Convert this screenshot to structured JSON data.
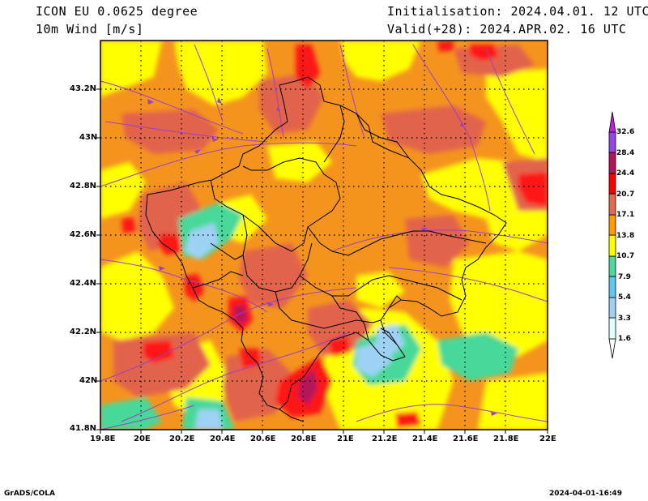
{
  "header": {
    "model": "ICON EU 0.0625 degree",
    "variable": "10m Wind [m/s]",
    "init": "Initialisation: 2024.04.01. 12 UTC",
    "valid": "Valid(+28): 2024.APR.02. 16 UTC"
  },
  "axes": {
    "x_ticks": [
      "19.8E",
      "20E",
      "20.2E",
      "20.4E",
      "20.6E",
      "20.8E",
      "21E",
      "21.2E",
      "21.4E",
      "21.6E",
      "21.8E",
      "22E"
    ],
    "y_ticks": [
      "43.2N",
      "43N",
      "42.8N",
      "42.6N",
      "42.4N",
      "42.2N",
      "42N",
      "41.8N"
    ]
  },
  "colorbar": {
    "levels": [
      "1.6",
      "3.3",
      "5.4",
      "7.9",
      "10.7",
      "13.8",
      "17.1",
      "20.7",
      "24.4",
      "28.4",
      "32.6"
    ],
    "colors": [
      "#e0ffff",
      "#9ed2f5",
      "#60c8f0",
      "#4cd9a0",
      "#ffff00",
      "#ff9a00",
      "#e26a4f",
      "#ff0000",
      "#b4145a",
      "#9646e6",
      "#7000d0",
      "#c020e0"
    ]
  },
  "footer": {
    "left": "GrADS/COLA",
    "right": "2024-04-01-16:49"
  },
  "map_colors": {
    "orange": "#f4941e",
    "yellow": "#ffff00",
    "salmon": "#e2644c",
    "red": "#ff1414",
    "crimson": "#b4145a",
    "green": "#46d89a",
    "lightblue": "#9ed2f5",
    "border": "#000000",
    "streamline": "#a040c0",
    "grid": "#000000"
  }
}
